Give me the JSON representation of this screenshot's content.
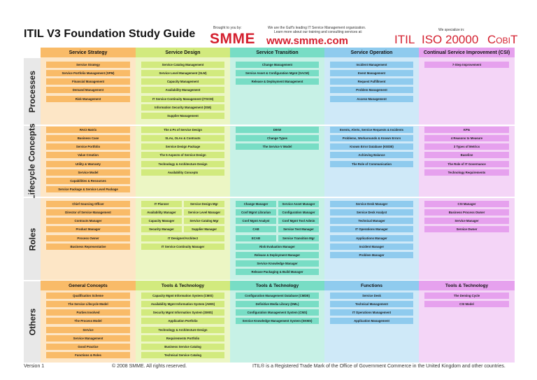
{
  "header": {
    "title": "ITIL V3 Foundation Study Guide",
    "brought_by": "Brought to you by:",
    "brand": "SMME",
    "tagline_1": "We are the Gulf's leading IT Service Management organization.",
    "tagline_2": "Learn more about our training and consulting services at:",
    "url": "www.smme.com",
    "specialize": "We specialize in:",
    "logo_itil": "ITIL",
    "logo_iso": "ISO 20000",
    "logo_cobit": "CobiT"
  },
  "colors": {
    "strategy": "#f9bb68",
    "design": "#d2ea7e",
    "transition": "#78ddc5",
    "operation": "#8fcbee",
    "csi": "#e6a1ee"
  },
  "columns": [
    "Service Strategy",
    "Service Design",
    "Service Transition",
    "Service Operation",
    "Continual Service Improvement (CSI)"
  ],
  "sections": {
    "processes": "Processes",
    "lifecycle": "Lifecycle Concepts",
    "roles": "Roles",
    "others": "Others"
  },
  "processes": {
    "strategy": [
      "Service Strategy",
      "Service Portfolio Management (SPM)",
      "Financial Management",
      "Demand Management",
      "Risk Management"
    ],
    "design": [
      "Service Catalog Management",
      "Service Level Management (SLM)",
      "Capacity Management",
      "Availability Management",
      "IT Service Continuity Management (ITSCM)",
      "Information Security Management (ISM)",
      "Supplier Management"
    ],
    "transition": [
      "Change Management",
      "Service Asset & Configuration Mgmt (SACM)",
      "Release & Deployment Management"
    ],
    "operation": [
      "Incident Management",
      "Event Management",
      "Request Fulfillment",
      "Problem Management",
      "Access Management"
    ],
    "csi": [
      "7-Step Improvement"
    ]
  },
  "lifecycle": {
    "strategy": [
      "RACI Matrix",
      "Business Case",
      "Service Portfolio",
      "Value Creation",
      "Utility & Warranty",
      "Service Model",
      "Capabilities & Resources",
      "Service Package & Service Level Package"
    ],
    "design": [
      "The 4 Ps of Service Design",
      "SLAs, OLAs & Contracts",
      "Service Design Package",
      "The 5 Aspects of Service Design",
      "Technology & Architecture Design",
      "Availability Concepts"
    ],
    "transition": [
      "DIKW",
      "Change Types",
      "The Service V Model"
    ],
    "operation": [
      "Events, Alerts, Service Requests & Incidents",
      "Problems, Workarounds & Known Errors",
      "Known Error Database (KEDB)",
      "Achieving Balance",
      "The Role of Communication"
    ],
    "csi": [
      "KPIs",
      "4 Reasons to Measure",
      "3 Types of Metrics",
      "Baseline",
      "The Role of IT Governance",
      "Technology Requirements"
    ]
  },
  "roles": {
    "strategy": [
      "Chief Sourcing Officer",
      "Director of Service Management",
      "Contracts Manager",
      "Product Manager",
      "Process Owner",
      "Business Representative"
    ],
    "design_pairs": [
      [
        "IT Planner",
        "Service Design Mgr"
      ],
      [
        "Availability Manager",
        "Service Level Manager"
      ],
      [
        "Capacity Manager",
        "Service Catalog Mgr"
      ],
      [
        "Security Manager",
        "Supplier Manager"
      ]
    ],
    "design_full": [
      "IT Designer/Architect",
      "IT Service Continuity Manager"
    ],
    "transition_pairs": [
      [
        "Change Manager",
        "Service Asset Manager"
      ],
      [
        "Conf Mgmt Librarian",
        "Configuration Manager"
      ],
      [
        "Conf Mgmt Analyst",
        "Conf Mgmt Tool Admin"
      ],
      [
        "CAB",
        "Service Test Manager"
      ],
      [
        "ECAB",
        "Service Transition Mgr"
      ]
    ],
    "transition_full": [
      "Risk Evaluation Manager",
      "Release & Deployment Manager",
      "Service Knowledge Manager",
      "Release Packaging & Build Manager"
    ],
    "operation": [
      "Service Desk Manager",
      "Service Desk Analyst",
      "Technical Manager",
      "IT Operations Manager",
      "Applications Manager",
      "Incident Manager",
      "Problem Manager"
    ],
    "csi": [
      "CSI Manager",
      "Business Process Owner",
      "Service Manager",
      "Service Owner"
    ]
  },
  "others": {
    "heads": [
      "General Concepts",
      "Tools & Technology",
      "Tools & Technology",
      "Functions",
      "Tools & Technology"
    ],
    "strategy": [
      "Qualification Scheme",
      "The Service Lifecycle Model",
      "Parties Involved",
      "The Process Model",
      "Service",
      "Service Management",
      "Good Practice",
      "Functions & Roles"
    ],
    "design": [
      "Capacity Mgmt Information System (CMIS)",
      "Availability Mgmt Information System (AMIS)",
      "Security Mgmt Information System (SMIS)",
      "Application Portfolio",
      "Technology & Architecture Design",
      "Requirements Portfolio",
      "Business Service Catalog",
      "Technical Service Catalog"
    ],
    "transition": [
      "Configuration Management Database (CMDB)",
      "Definitive Media Library (DML)",
      "Configuration Management System (CMS)",
      "Service Knowledge Management System (SKMS)"
    ],
    "operation": [
      "Service Desk",
      "Technical Management",
      "IT Operations Management",
      "Application Management"
    ],
    "csi": [
      "The Deming Cycle",
      "CSI Model"
    ]
  },
  "footer": {
    "version": "Version 1",
    "copyright": "© 2008 SMME. All rights reserved.",
    "trademark": "ITIL® is a Registered Trade Mark of the Office of Government Commerce in the United Kingdom and other countries."
  }
}
